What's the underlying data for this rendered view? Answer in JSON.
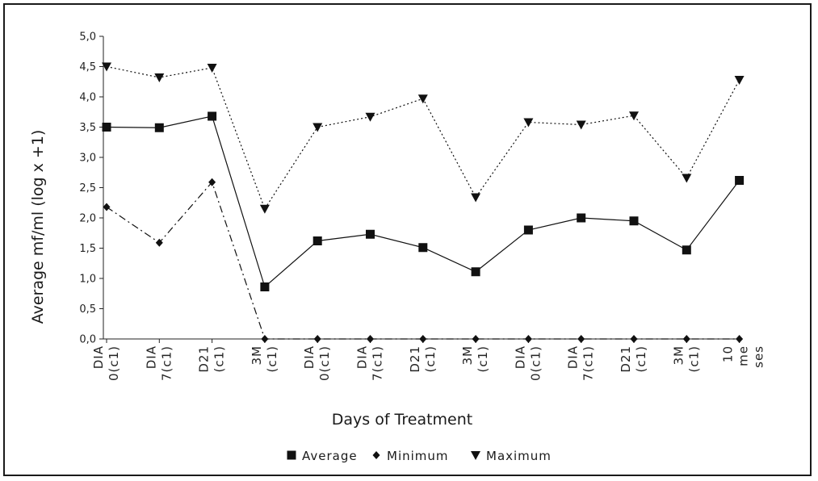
{
  "chart_data": {
    "type": "line",
    "title": "",
    "xlabel": "Days of Treatment",
    "ylabel": "Average mf/ml (log x +1)",
    "ylim": [
      0,
      5
    ],
    "yticks": [
      "0,0",
      "0,5",
      "1,0",
      "1,5",
      "2,0",
      "2,5",
      "3,0",
      "3,5",
      "4,0",
      "4,5",
      "5,0"
    ],
    "categories": [
      [
        "DIA",
        "0(c1)"
      ],
      [
        "DIA",
        "7(c1)"
      ],
      [
        "D21",
        "(c1)"
      ],
      [
        "3M",
        "(c1)"
      ],
      [
        "DIA",
        "0(c1)"
      ],
      [
        "DIA",
        "7(c1)"
      ],
      [
        "D21",
        "(c1)"
      ],
      [
        "3M",
        "(c1)"
      ],
      [
        "DIA",
        "0(c1)"
      ],
      [
        "DIA",
        "7(c1)"
      ],
      [
        "D21",
        "(c1)"
      ],
      [
        "3M",
        "(c1)"
      ],
      [
        "10",
        "me",
        "ses"
      ]
    ],
    "series": [
      {
        "name": "Average",
        "marker": "square",
        "line": "solid",
        "values": [
          3.5,
          3.49,
          3.68,
          0.86,
          1.62,
          1.73,
          1.51,
          1.11,
          1.8,
          2.0,
          1.95,
          1.47,
          2.62
        ]
      },
      {
        "name": "Minimum",
        "marker": "diamond",
        "line": "dashdot",
        "values": [
          2.18,
          1.59,
          2.59,
          0.0,
          0.0,
          0.0,
          0.0,
          0.0,
          0.0,
          0.0,
          0.0,
          0.0,
          0.0
        ]
      },
      {
        "name": "Maximum",
        "marker": "triangle-down",
        "line": "dotted",
        "values": [
          4.5,
          4.32,
          4.48,
          2.15,
          3.5,
          3.67,
          3.97,
          2.34,
          3.58,
          3.54,
          3.69,
          2.66,
          4.28
        ]
      }
    ],
    "legend_position": "bottom",
    "grid": false,
    "colors": {
      "line": "#111111",
      "axis": "#222222",
      "frame": "#1a1a1a"
    }
  }
}
